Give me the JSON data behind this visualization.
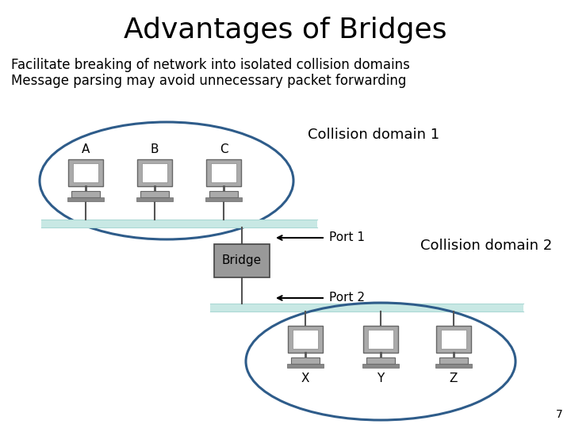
{
  "title": "Advantages of Bridges",
  "bullet1": "Facilitate breaking of network into isolated collision domains",
  "bullet2": "Message parsing may avoid unnecessary packet forwarding",
  "collision_domain_1_label": "Collision domain 1",
  "collision_domain_2_label": "Collision domain 2",
  "computers_top": [
    "A",
    "B",
    "C"
  ],
  "computers_bottom": [
    "X",
    "Y",
    "Z"
  ],
  "port1_label": "Port 1",
  "port2_label": "Port 2",
  "bridge_label": "Bridge",
  "page_number": "7",
  "bg_color": "#ffffff",
  "ellipse_color": "#2e5c8a",
  "bus_color": "#c8e8e4",
  "bridge_fill": "#999999",
  "computer_body_color": "#aaaaaa",
  "title_fontsize": 26,
  "bullet_fontsize": 12,
  "label_fontsize": 13,
  "port_fontsize": 11,
  "computer_label_fontsize": 11
}
